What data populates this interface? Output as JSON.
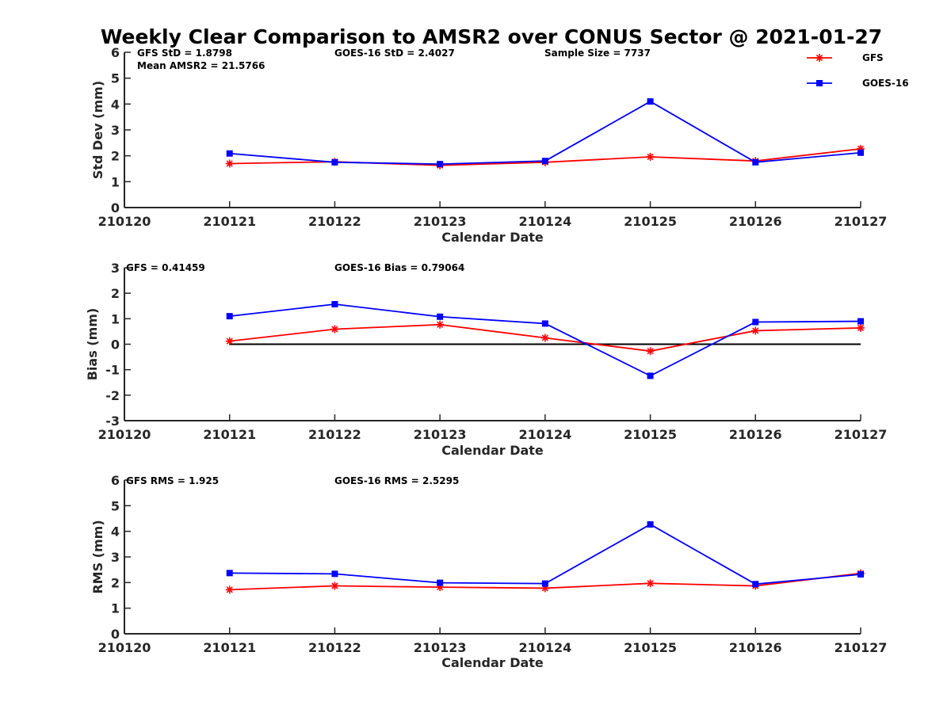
{
  "figure": {
    "title": "Weekly Clear Comparison to AMSR2 over CONUS Sector @ 2021-01-27"
  },
  "legend": {
    "placement": "top-right",
    "entries": [
      {
        "name": "GFS",
        "color": "#ff0000",
        "marker": "asterisk"
      },
      {
        "name": "GOES-16",
        "color": "#0000ff",
        "marker": "square"
      }
    ]
  },
  "colors": {
    "gfs": "#ff0000",
    "goes16": "#0000ff",
    "zero_line": "#000000"
  },
  "chart_data": [
    {
      "type": "line",
      "xlabel": "Calendar Date",
      "ylabel": "Std Dev (mm)",
      "x_ticks": [
        "210120",
        "210121",
        "210122",
        "210123",
        "210124",
        "210125",
        "210126",
        "210127"
      ],
      "ylim": [
        0,
        6
      ],
      "y_ticks": [
        0,
        1,
        2,
        3,
        4,
        5,
        6
      ],
      "zero_line": false,
      "annotations": {
        "gfs": "GFS StD = 1.8798",
        "goes": "GOES-16 StD = 2.4027",
        "sample": "Sample Size = 7737",
        "mean": "Mean AMSR2 = 21.5766"
      },
      "series": [
        {
          "name": "GFS",
          "x": [
            "210121",
            "210122",
            "210123",
            "210124",
            "210125",
            "210126",
            "210127"
          ],
          "values": [
            1.7,
            1.77,
            1.63,
            1.75,
            1.96,
            1.8,
            2.27
          ]
        },
        {
          "name": "GOES-16",
          "x": [
            "210121",
            "210122",
            "210123",
            "210124",
            "210125",
            "210126",
            "210127"
          ],
          "values": [
            2.09,
            1.75,
            1.68,
            1.8,
            4.1,
            1.75,
            2.12
          ]
        }
      ]
    },
    {
      "type": "line",
      "xlabel": "Calendar Date",
      "ylabel": "Bias (mm)",
      "x_ticks": [
        "210120",
        "210121",
        "210122",
        "210123",
        "210124",
        "210125",
        "210126",
        "210127"
      ],
      "ylim": [
        -3,
        3
      ],
      "y_ticks": [
        -3,
        -2,
        -1,
        0,
        1,
        2,
        3
      ],
      "zero_line": true,
      "annotations": {
        "gfs": "GFS = 0.41459",
        "goes": "GOES-16 Bias  = 0.79064"
      },
      "series": [
        {
          "name": "GFS",
          "x": [
            "210121",
            "210122",
            "210123",
            "210124",
            "210125",
            "210126",
            "210127"
          ],
          "values": [
            0.12,
            0.59,
            0.77,
            0.25,
            -0.27,
            0.53,
            0.64
          ]
        },
        {
          "name": "GOES-16",
          "x": [
            "210121",
            "210122",
            "210123",
            "210124",
            "210125",
            "210126",
            "210127"
          ],
          "values": [
            1.1,
            1.57,
            1.08,
            0.81,
            -1.24,
            0.87,
            0.9
          ]
        }
      ]
    },
    {
      "type": "line",
      "xlabel": "Calendar Date",
      "ylabel": "RMS (mm)",
      "x_ticks": [
        "210120",
        "210121",
        "210122",
        "210123",
        "210124",
        "210125",
        "210126",
        "210127"
      ],
      "ylim": [
        0,
        6
      ],
      "y_ticks": [
        0,
        1,
        2,
        3,
        4,
        5,
        6
      ],
      "zero_line": false,
      "annotations": {
        "gfs": "GFS RMS = 1.925",
        "goes": "GOES-16 RMS = 2.5295"
      },
      "series": [
        {
          "name": "GFS",
          "x": [
            "210121",
            "210122",
            "210123",
            "210124",
            "210125",
            "210126",
            "210127"
          ],
          "values": [
            1.72,
            1.87,
            1.82,
            1.78,
            1.97,
            1.87,
            2.36
          ]
        },
        {
          "name": "GOES-16",
          "x": [
            "210121",
            "210122",
            "210123",
            "210124",
            "210125",
            "210126",
            "210127"
          ],
          "values": [
            2.37,
            2.34,
            1.99,
            1.96,
            4.27,
            1.94,
            2.32
          ]
        }
      ]
    }
  ]
}
